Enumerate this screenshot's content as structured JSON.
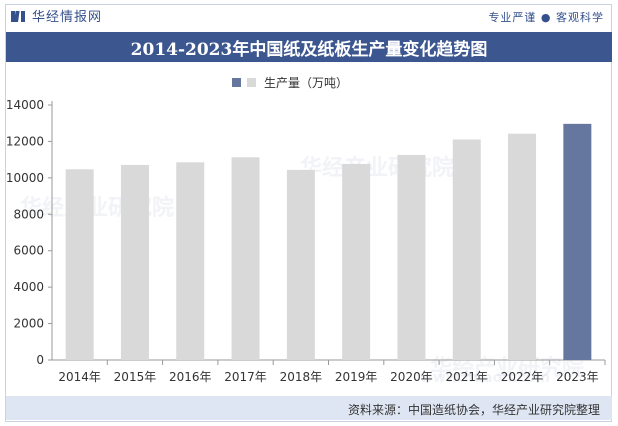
{
  "header": {
    "logo_text": "华经情报网",
    "slogan": "专业严谨 ● 客观科学"
  },
  "footer": {
    "source": "资料来源：中国造纸协会，华经产业研究院整理"
  },
  "watermark": {
    "text": "华经产业研究院",
    "url": "www.huaon.com"
  },
  "colors": {
    "primary": "#3c568f",
    "bar_default": "#d9d9d9",
    "bar_highlight": "#65779f",
    "footer_bg": "#dfe6f3"
  },
  "chart_data": {
    "type": "bar",
    "title": "2014-2023年中国纸及纸板生产量变化趋势图",
    "legend": "生产量（万吨）",
    "categories": [
      "2014年",
      "2015年",
      "2016年",
      "2017年",
      "2018年",
      "2019年",
      "2020年",
      "2021年",
      "2022年",
      "2023年"
    ],
    "values": [
      10470,
      10710,
      10855,
      11130,
      10435,
      10765,
      11260,
      12105,
      12425,
      12965
    ],
    "highlight_index": 9,
    "ylim": [
      0,
      14000
    ],
    "yticks": [
      0,
      2000,
      4000,
      6000,
      8000,
      10000,
      12000,
      14000
    ],
    "xlabel": "",
    "ylabel": ""
  }
}
